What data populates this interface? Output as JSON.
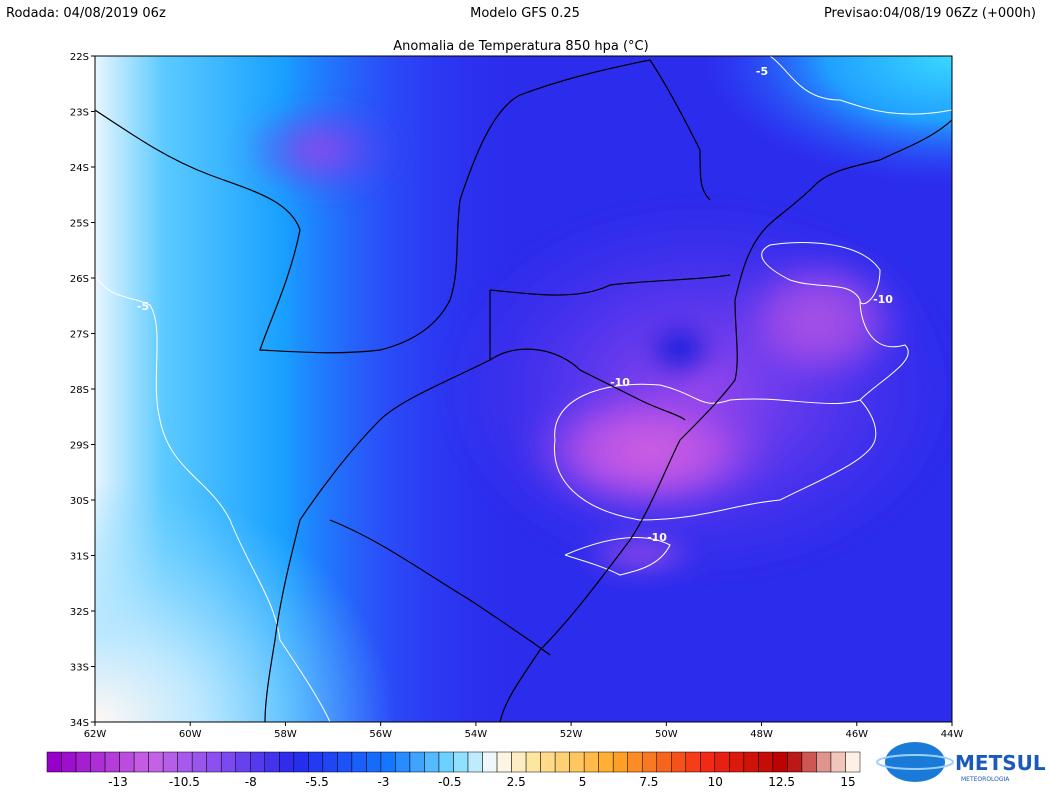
{
  "header": {
    "run": "Rodada: 04/08/2019 06z",
    "model": "Modelo GFS 0.25",
    "forecast": "Previsao:04/08/19 06Zz (+000h)",
    "title": "Anomalia de Temperatura 850 hpa (°C)"
  },
  "map": {
    "lat_labels": [
      "22S",
      "23S",
      "24S",
      "25S",
      "26S",
      "27S",
      "28S",
      "29S",
      "30S",
      "31S",
      "32S",
      "33S",
      "34S"
    ],
    "lon_labels": [
      "62W",
      "60W",
      "58W",
      "56W",
      "54W",
      "52W",
      "50W",
      "48W",
      "46W",
      "44W"
    ],
    "contour_labels": [
      "-5",
      "-5",
      "-10",
      "-10",
      "-10"
    ]
  },
  "colorbar": {
    "labels": [
      "-13",
      "-10.5",
      "-8",
      "-5.5",
      "-3",
      "-0.5",
      "2.5",
      "5",
      "7.5",
      "10",
      "12.5",
      "15"
    ]
  },
  "logo": {
    "name": "METSUL",
    "tagline": "METEOROLOGIA"
  }
}
